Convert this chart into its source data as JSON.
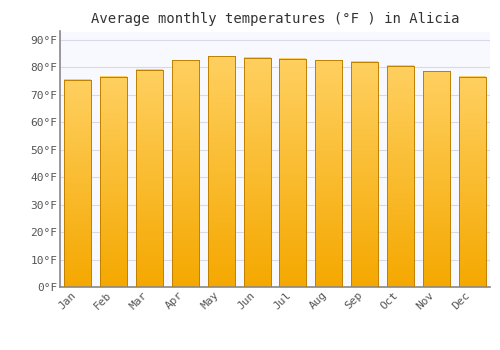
{
  "title": "Average monthly temperatures (°F ) in Alicia",
  "months": [
    "Jan",
    "Feb",
    "Mar",
    "Apr",
    "May",
    "Jun",
    "Jul",
    "Aug",
    "Sep",
    "Oct",
    "Nov",
    "Dec"
  ],
  "values": [
    75.5,
    76.5,
    79.0,
    82.5,
    84.0,
    83.5,
    83.0,
    82.5,
    82.0,
    80.5,
    78.5,
    76.5
  ],
  "bar_color_bottom": "#F5A800",
  "bar_color_top": "#FFD060",
  "bar_edge_color": "#C08000",
  "background_color": "#FFFFFF",
  "plot_bg_color": "#F8F8FF",
  "grid_color": "#D8D8E8",
  "yticks": [
    0,
    10,
    20,
    30,
    40,
    50,
    60,
    70,
    80,
    90
  ],
  "ylim": [
    0,
    93
  ],
  "title_fontsize": 10,
  "tick_fontsize": 8,
  "font_family": "monospace",
  "bar_width": 0.75
}
